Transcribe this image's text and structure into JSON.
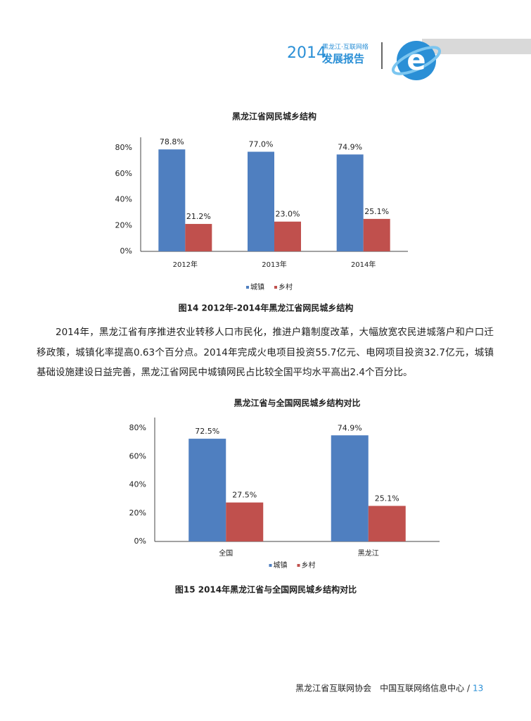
{
  "header": {
    "year": "2014",
    "subtitle": "黑龙江·互联网络",
    "title": "发展报告"
  },
  "chart_data": [
    {
      "type": "bar",
      "title": "黑龙江省网民城乡结构",
      "categories": [
        "2012年",
        "2013年",
        "2014年"
      ],
      "series": [
        {
          "name": "城镇",
          "color": "#4f7fc0",
          "values": [
            78.8,
            77.0,
            74.9
          ],
          "value_labels": [
            "78.8%",
            "77.0%",
            "74.9%"
          ]
        },
        {
          "name": "乡村",
          "color": "#c0504d",
          "values": [
            21.2,
            23.0,
            25.1
          ],
          "value_labels": [
            "21.2%",
            "23.0%",
            "25.1%"
          ]
        }
      ],
      "ylim": [
        0,
        80
      ],
      "yticks": [
        {
          "value": 0,
          "label": "0%"
        },
        {
          "value": 20,
          "label": "20%"
        },
        {
          "value": 40,
          "label": "40%"
        },
        {
          "value": 60,
          "label": "60%"
        },
        {
          "value": 80,
          "label": "80%"
        }
      ],
      "legend": "bottom"
    },
    {
      "type": "bar",
      "title": "黑龙江省与全国网民城乡结构对比",
      "categories": [
        "全国",
        "黑龙江"
      ],
      "series": [
        {
          "name": "城镇",
          "color": "#4f7fc0",
          "values": [
            72.5,
            74.9
          ],
          "value_labels": [
            "72.5%",
            "74.9%"
          ]
        },
        {
          "name": "乡村",
          "color": "#c0504d",
          "values": [
            27.5,
            25.1
          ],
          "value_labels": [
            "27.5%",
            "25.1%"
          ]
        }
      ],
      "ylim": [
        0,
        80
      ],
      "yticks": [
        {
          "value": 0,
          "label": "0%"
        },
        {
          "value": 20,
          "label": "20%"
        },
        {
          "value": 40,
          "label": "40%"
        },
        {
          "value": 60,
          "label": "60%"
        },
        {
          "value": 80,
          "label": "80%"
        }
      ],
      "legend": "bottom"
    }
  ],
  "captions": [
    "图14 2012年-2014年黑龙江省网民城乡结构",
    "图15 2014年黑龙江省与全国网民城乡结构对比"
  ],
  "paragraph": "2014年，黑龙江省有序推进农业转移人口市民化，推进户籍制度改革，大幅放宽农民进城落户和户口迁移政策，城镇化率提高0.63个百分点。2014年完成火电项目投资55.7亿元、电网项目投资32.7亿元，城镇基础设施建设日益完善，黑龙江省网民中城镇网民占比较全国平均水平高出2.4个百分比。",
  "footer": {
    "org": "黑龙江省互联网协会　中国互联网络信息中心 /",
    "page": "13"
  }
}
